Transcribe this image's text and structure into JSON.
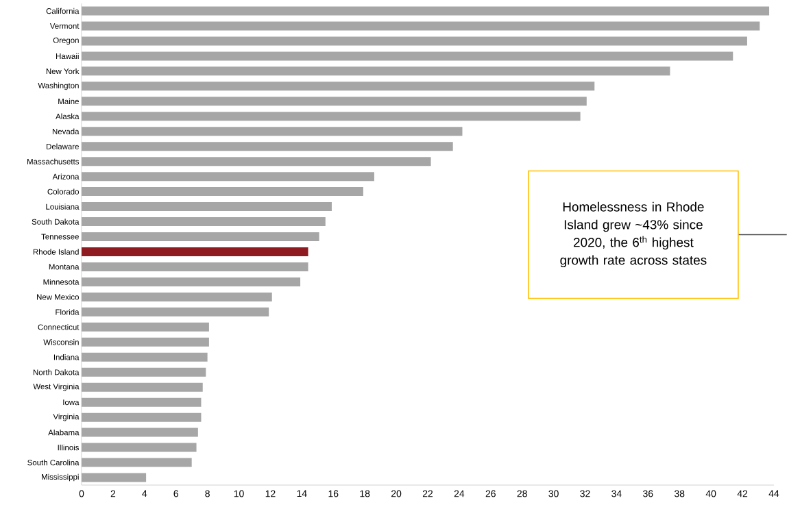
{
  "chart_data": {
    "type": "bar",
    "orientation": "horizontal",
    "categories": [
      "California",
      "Vermont",
      "Oregon",
      "Hawaii",
      "New York",
      "Washington",
      "Maine",
      "Alaska",
      "Nevada",
      "Delaware",
      "Massachusetts",
      "Arizona",
      "Colorado",
      "Louisiana",
      "South Dakota",
      "Tennessee",
      "Rhode Island",
      "Montana",
      "Minnesota",
      "New Mexico",
      "Florida",
      "Connecticut",
      "Wisconsin",
      "Indiana",
      "North Dakota",
      "West Virginia",
      "Iowa",
      "Virginia",
      "Alabama",
      "Illinois",
      "South Carolina",
      "Mississippi"
    ],
    "values": [
      43.7,
      43.1,
      42.3,
      41.4,
      37.4,
      32.6,
      32.1,
      31.7,
      24.2,
      23.6,
      22.2,
      18.6,
      17.9,
      15.9,
      15.5,
      15.1,
      14.4,
      14.4,
      13.9,
      12.1,
      11.9,
      8.1,
      8.1,
      8.0,
      7.9,
      7.7,
      7.6,
      7.6,
      7.4,
      7.3,
      7.0,
      4.1
    ],
    "colors": [
      "#a6a6a6",
      "#a6a6a6",
      "#a6a6a6",
      "#a6a6a6",
      "#a6a6a6",
      "#a6a6a6",
      "#a6a6a6",
      "#a6a6a6",
      "#a6a6a6",
      "#a6a6a6",
      "#a6a6a6",
      "#a6a6a6",
      "#a6a6a6",
      "#a6a6a6",
      "#a6a6a6",
      "#a6a6a6",
      "#8f1b20",
      "#a6a6a6",
      "#a6a6a6",
      "#a6a6a6",
      "#a6a6a6",
      "#a6a6a6",
      "#a6a6a6",
      "#a6a6a6",
      "#a6a6a6",
      "#a6a6a6",
      "#a6a6a6",
      "#a6a6a6",
      "#a6a6a6",
      "#a6a6a6",
      "#a6a6a6",
      "#a6a6a6"
    ],
    "xlim": [
      0,
      44
    ],
    "xticks": [
      0,
      2,
      4,
      6,
      8,
      10,
      12,
      14,
      16,
      18,
      20,
      22,
      24,
      26,
      28,
      30,
      32,
      34,
      36,
      38,
      40,
      42,
      44
    ],
    "annotations": [
      "Homelessness in Rhode Island grew ~43% since 2020, the 6$^{th}$ highest growth rate across states"
    ]
  }
}
